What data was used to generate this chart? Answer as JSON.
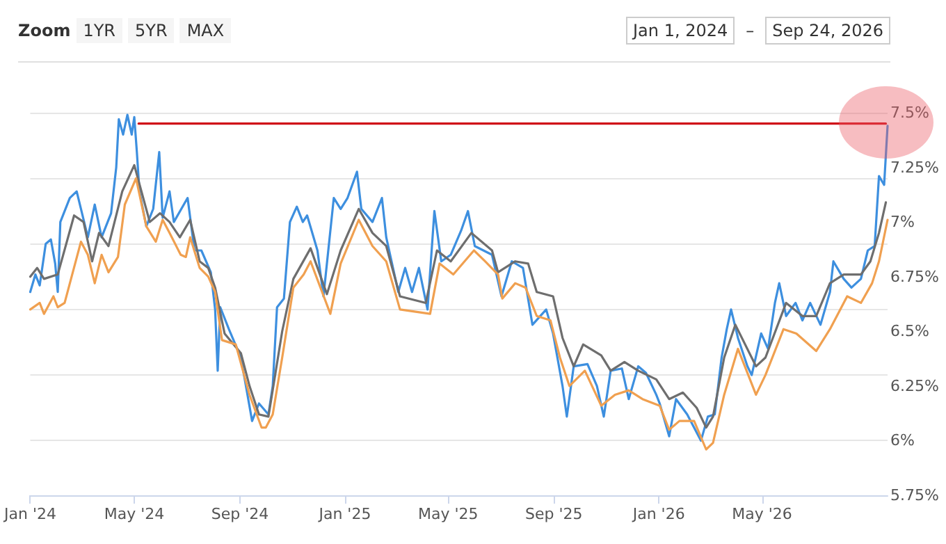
{
  "chart_data": {
    "type": "line",
    "annotations": [
      "Zoom",
      "1YR",
      "5YR",
      "MAX",
      "Jan 1, 2024",
      "–",
      "Sep 24, 2026"
    ],
    "xlim": [
      "2024-01-01",
      "2026-09-24"
    ],
    "xticks": [
      {
        "value": "2024-01-01",
        "label": "Jan '24"
      },
      {
        "value": "2024-05-01",
        "label": "May '24"
      },
      {
        "value": "2024-09-01",
        "label": "Sep '24"
      },
      {
        "value": "2025-01-01",
        "label": "Jan '25"
      },
      {
        "value": "2025-05-01",
        "label": "May '25"
      },
      {
        "value": "2025-09-01",
        "label": "Sep '25"
      },
      {
        "value": "2026-01-01",
        "label": "Jan '26"
      },
      {
        "value": "2026-05-01",
        "label": "May '26"
      }
    ],
    "ylim": [
      5.75,
      7.5
    ],
    "yticks": [
      {
        "value": 5.75,
        "label": "5.75%"
      },
      {
        "value": 6,
        "label": "6%"
      },
      {
        "value": 6.25,
        "label": "6.25%"
      },
      {
        "value": 6.5,
        "label": "6.5%"
      },
      {
        "value": 6.75,
        "label": "6.75%"
      },
      {
        "value": 7,
        "label": "7%"
      },
      {
        "value": 7.25,
        "label": "7.25%"
      },
      {
        "value": 7.5,
        "label": "7.5%"
      }
    ],
    "grid": "y",
    "marker": "none",
    "line_style": "solid",
    "series": [
      {
        "color": "#3d8fdf",
        "x": [
          "2024-01-01",
          "2024-01-07",
          "2024-01-12",
          "2024-01-19",
          "2024-01-25",
          "2024-01-30",
          "2024-02-02",
          "2024-02-05",
          "2024-02-16",
          "2024-02-24",
          "2024-02-29",
          "2024-03-08",
          "2024-03-16",
          "2024-03-24",
          "2024-04-04",
          "2024-04-10",
          "2024-04-13",
          "2024-04-18",
          "2024-04-23",
          "2024-04-28",
          "2024-05-01",
          "2024-05-04",
          "2024-05-07",
          "2024-05-15",
          "2024-05-23",
          "2024-05-30",
          "2024-06-03",
          "2024-06-11",
          "2024-06-16",
          "2024-07-02",
          "2024-07-10",
          "2024-07-18",
          "2024-07-29",
          "2024-08-03",
          "2024-08-06",
          "2024-08-09",
          "2024-08-19",
          "2024-09-02",
          "2024-09-15",
          "2024-09-23",
          "2024-10-04",
          "2024-10-09",
          "2024-10-14",
          "2024-10-22",
          "2024-10-29",
          "2024-11-06",
          "2024-11-13",
          "2024-11-18",
          "2024-11-30",
          "2024-12-07",
          "2024-12-19",
          "2024-12-27",
          "2025-01-04",
          "2025-01-15",
          "2025-01-20",
          "2025-02-02",
          "2025-02-13",
          "2025-02-18",
          "2025-03-04",
          "2025-03-12",
          "2025-03-20",
          "2025-03-28",
          "2025-04-07",
          "2025-04-15",
          "2025-04-23",
          "2025-05-04",
          "2025-05-16",
          "2025-05-24",
          "2025-06-01",
          "2025-06-21",
          "2025-07-02",
          "2025-07-14",
          "2025-07-27",
          "2025-08-07",
          "2025-08-23",
          "2025-08-31",
          "2025-09-11",
          "2025-09-16",
          "2025-09-24",
          "2025-10-10",
          "2025-10-21",
          "2025-10-29",
          "2025-11-06",
          "2025-11-19",
          "2025-11-27",
          "2025-12-08",
          "2025-12-17",
          "2025-12-29",
          "2026-01-02",
          "2026-01-13",
          "2026-01-21",
          "2026-02-03",
          "2026-02-19",
          "2026-02-27",
          "2026-03-07",
          "2026-03-15",
          "2026-03-21",
          "2026-03-26",
          "2026-04-03",
          "2026-04-14",
          "2026-04-19",
          "2026-04-30",
          "2026-05-08",
          "2026-05-16",
          "2026-05-21",
          "2026-05-29",
          "2026-06-09",
          "2026-06-17",
          "2026-06-26",
          "2026-07-08",
          "2026-07-19",
          "2026-07-23",
          "2026-08-04",
          "2026-08-13",
          "2026-08-24",
          "2026-09-01",
          "2026-09-09",
          "2026-09-14",
          "2026-09-20",
          "2026-09-24"
        ],
        "values": [
          6.68,
          6.76,
          6.71,
          6.9,
          6.92,
          6.81,
          6.68,
          7.0,
          7.11,
          7.14,
          7.06,
          6.93,
          7.08,
          6.93,
          7.04,
          7.25,
          7.47,
          7.4,
          7.49,
          7.4,
          7.48,
          7.32,
          7.14,
          6.98,
          7.06,
          7.32,
          7.02,
          7.14,
          7.0,
          7.11,
          6.87,
          6.87,
          6.77,
          6.6,
          6.32,
          6.61,
          6.51,
          6.38,
          6.09,
          6.17,
          6.12,
          6.25,
          6.61,
          6.65,
          7.0,
          7.07,
          7.0,
          7.03,
          6.87,
          6.66,
          7.11,
          7.06,
          7.11,
          7.23,
          7.06,
          7.0,
          7.11,
          6.93,
          6.68,
          6.79,
          6.68,
          6.79,
          6.6,
          7.05,
          6.82,
          6.85,
          6.96,
          7.05,
          6.89,
          6.85,
          6.66,
          6.82,
          6.79,
          6.53,
          6.6,
          6.49,
          6.25,
          6.11,
          6.34,
          6.35,
          6.25,
          6.11,
          6.32,
          6.33,
          6.19,
          6.34,
          6.31,
          6.21,
          6.17,
          6.02,
          6.19,
          6.12,
          6.0,
          6.11,
          6.12,
          6.38,
          6.51,
          6.6,
          6.47,
          6.34,
          6.3,
          6.49,
          6.42,
          6.63,
          6.72,
          6.57,
          6.63,
          6.55,
          6.63,
          6.53,
          6.68,
          6.82,
          6.74,
          6.7,
          6.74,
          6.87,
          6.89,
          7.21,
          7.17,
          7.44
        ]
      },
      {
        "color": "#6e6e6e",
        "x": [
          "2024-01-01",
          "2024-01-09",
          "2024-01-17",
          "2024-02-02",
          "2024-02-21",
          "2024-03-03",
          "2024-03-13",
          "2024-03-21",
          "2024-04-01",
          "2024-04-17",
          "2024-05-01",
          "2024-05-19",
          "2024-05-31",
          "2024-06-11",
          "2024-06-23",
          "2024-07-05",
          "2024-07-16",
          "2024-07-26",
          "2024-08-03",
          "2024-08-14",
          "2024-09-02",
          "2024-09-12",
          "2024-09-23",
          "2024-10-04",
          "2024-10-20",
          "2024-11-02",
          "2024-11-22",
          "2024-12-11",
          "2024-12-27",
          "2025-01-17",
          "2025-02-02",
          "2025-02-18",
          "2025-03-06",
          "2025-04-05",
          "2025-04-18",
          "2025-05-04",
          "2025-05-28",
          "2025-06-21",
          "2025-06-28",
          "2025-07-18",
          "2025-08-02",
          "2025-08-12",
          "2025-08-31",
          "2025-09-11",
          "2025-09-24",
          "2025-10-05",
          "2025-10-26",
          "2025-11-06",
          "2025-11-22",
          "2025-12-08",
          "2025-12-29",
          "2026-01-13",
          "2026-01-29",
          "2026-02-14",
          "2026-02-25",
          "2026-03-05",
          "2026-03-18",
          "2026-03-31",
          "2026-04-24",
          "2026-05-05",
          "2026-05-29",
          "2026-06-17",
          "2026-07-03",
          "2026-07-19",
          "2026-08-04",
          "2026-08-24",
          "2026-09-04",
          "2026-09-14",
          "2026-09-22"
        ],
        "values": [
          6.75,
          6.79,
          6.74,
          6.76,
          7.03,
          7.0,
          6.82,
          6.95,
          6.89,
          7.14,
          7.26,
          7.0,
          7.04,
          7.0,
          6.93,
          7.01,
          6.82,
          6.79,
          6.7,
          6.49,
          6.4,
          6.25,
          6.12,
          6.11,
          6.5,
          6.74,
          6.88,
          6.67,
          6.87,
          7.06,
          6.95,
          6.89,
          6.66,
          6.63,
          6.87,
          6.82,
          6.95,
          6.87,
          6.77,
          6.82,
          6.81,
          6.68,
          6.66,
          6.47,
          6.34,
          6.44,
          6.39,
          6.32,
          6.36,
          6.32,
          6.28,
          6.19,
          6.22,
          6.15,
          6.06,
          6.11,
          6.38,
          6.53,
          6.34,
          6.38,
          6.63,
          6.57,
          6.57,
          6.72,
          6.76,
          6.76,
          6.82,
          6.95,
          7.09
        ]
      },
      {
        "color": "#f0a050",
        "x": [
          "2024-01-01",
          "2024-01-12",
          "2024-01-17",
          "2024-01-28",
          "2024-02-02",
          "2024-02-10",
          "2024-02-29",
          "2024-03-08",
          "2024-03-16",
          "2024-03-24",
          "2024-04-01",
          "2024-04-12",
          "2024-04-20",
          "2024-05-03",
          "2024-05-15",
          "2024-05-26",
          "2024-06-03",
          "2024-06-11",
          "2024-06-24",
          "2024-06-30",
          "2024-07-05",
          "2024-07-16",
          "2024-07-26",
          "2024-08-03",
          "2024-08-11",
          "2024-08-27",
          "2024-09-12",
          "2024-09-26",
          "2024-10-01",
          "2024-10-09",
          "2024-10-20",
          "2024-11-02",
          "2024-11-14",
          "2024-11-22",
          "2024-12-15",
          "2024-12-27",
          "2025-01-17",
          "2025-02-02",
          "2025-02-18",
          "2025-03-06",
          "2025-04-10",
          "2025-04-21",
          "2025-05-07",
          "2025-05-31",
          "2025-06-13",
          "2025-06-28",
          "2025-07-03",
          "2025-07-18",
          "2025-07-30",
          "2025-08-12",
          "2025-08-28",
          "2025-09-08",
          "2025-09-19",
          "2025-10-07",
          "2025-10-26",
          "2025-11-11",
          "2025-11-27",
          "2025-12-13",
          "2026-01-02",
          "2026-01-13",
          "2026-01-25",
          "2026-02-11",
          "2026-02-25",
          "2026-03-05",
          "2026-03-18",
          "2026-04-03",
          "2026-04-24",
          "2026-05-05",
          "2026-05-26",
          "2026-06-10",
          "2026-07-03",
          "2026-07-19",
          "2026-08-08",
          "2026-08-24",
          "2026-09-06",
          "2026-09-14",
          "2026-09-24"
        ],
        "values": [
          6.6,
          6.63,
          6.58,
          6.66,
          6.61,
          6.63,
          6.91,
          6.85,
          6.72,
          6.85,
          6.77,
          6.84,
          7.08,
          7.2,
          6.98,
          6.91,
          7.01,
          6.95,
          6.85,
          6.84,
          6.93,
          6.79,
          6.75,
          6.68,
          6.46,
          6.44,
          6.21,
          6.06,
          6.06,
          6.12,
          6.38,
          6.7,
          6.76,
          6.82,
          6.58,
          6.81,
          7.01,
          6.89,
          6.82,
          6.6,
          6.58,
          6.81,
          6.76,
          6.87,
          6.82,
          6.76,
          6.65,
          6.72,
          6.7,
          6.57,
          6.55,
          6.38,
          6.25,
          6.32,
          6.16,
          6.21,
          6.23,
          6.19,
          6.16,
          6.05,
          6.09,
          6.09,
          5.96,
          5.99,
          6.21,
          6.42,
          6.21,
          6.3,
          6.51,
          6.49,
          6.41,
          6.51,
          6.66,
          6.63,
          6.72,
          6.82,
          7.01
        ]
      },
      {
        "color": "#d01018",
        "x": [
          "2024-05-06",
          "2026-09-22"
        ],
        "values": [
          7.45,
          7.45
        ]
      }
    ]
  }
}
